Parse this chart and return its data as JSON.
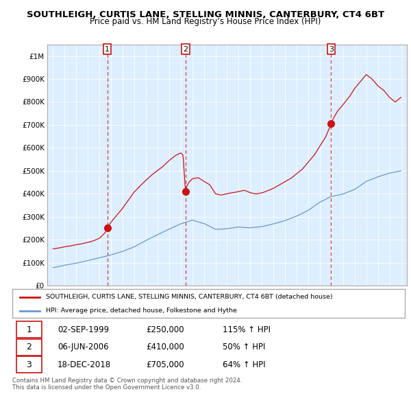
{
  "title": "SOUTHLEIGH, CURTIS LANE, STELLING MINNIS, CANTERBURY, CT4 6BT",
  "subtitle": "Price paid vs. HM Land Registry’s House Price Index (HPI)",
  "sale_year_floats": [
    1999.67,
    2006.42,
    2018.96
  ],
  "sale_prices": [
    250000,
    410000,
    705000
  ],
  "sale_labels": [
    "1",
    "2",
    "3"
  ],
  "legend_house": "SOUTHLEIGH, CURTIS LANE, STELLING MINNIS, CANTERBURY, CT4 6BT (detached house)",
  "legend_hpi": "HPI: Average price, detached house, Folkestone and Hythe",
  "table_rows": [
    [
      "1",
      "02-SEP-1999",
      "£250,000",
      "115% ↑ HPI"
    ],
    [
      "2",
      "06-JUN-2006",
      "£410,000",
      "50% ↑ HPI"
    ],
    [
      "3",
      "18-DEC-2018",
      "£705,000",
      "64% ↑ HPI"
    ]
  ],
  "footer": "Contains HM Land Registry data © Crown copyright and database right 2024.\nThis data is licensed under the Open Government Licence v3.0.",
  "house_color": "#cc1111",
  "hpi_color": "#6699cc",
  "dashed_color": "#cc1111",
  "shade_color": "#ddeeff",
  "ylim": [
    0,
    1050000
  ],
  "yticks": [
    0,
    100000,
    200000,
    300000,
    400000,
    500000,
    600000,
    700000,
    800000,
    900000,
    1000000
  ],
  "ytick_labels": [
    "£0",
    "£100K",
    "£200K",
    "£300K",
    "£400K",
    "£500K",
    "£600K",
    "£700K",
    "£800K",
    "£900K",
    "£1M"
  ],
  "xlim": [
    1994.5,
    2025.5
  ],
  "hpi_kx": [
    1995,
    1996,
    1997,
    1998,
    1999,
    2000,
    2001,
    2002,
    2003,
    2004,
    2005,
    2006,
    2007,
    2008,
    2009,
    2010,
    2011,
    2012,
    2013,
    2014,
    2015,
    2016,
    2017,
    2018,
    2019,
    2020,
    2021,
    2022,
    2023,
    2024,
    2025
  ],
  "hpi_ky": [
    78000,
    88000,
    98000,
    108000,
    120000,
    133000,
    148000,
    168000,
    195000,
    220000,
    245000,
    268000,
    285000,
    270000,
    245000,
    248000,
    255000,
    252000,
    258000,
    270000,
    285000,
    305000,
    330000,
    365000,
    390000,
    400000,
    420000,
    455000,
    475000,
    490000,
    500000
  ],
  "house_kx": [
    1995,
    1995.5,
    1996,
    1996.5,
    1997,
    1997.5,
    1998,
    1998.5,
    1999,
    1999.5,
    1999.67,
    2000,
    2000.5,
    2001,
    2001.5,
    2002,
    2002.5,
    2003,
    2003.5,
    2004,
    2004.5,
    2005,
    2005.5,
    2006,
    2006.2,
    2006.42,
    2006.5,
    2006.7,
    2007,
    2007.5,
    2008,
    2008.5,
    2009,
    2009.5,
    2010,
    2010.5,
    2011,
    2011.5,
    2012,
    2012.5,
    2013,
    2013.5,
    2014,
    2014.5,
    2015,
    2015.5,
    2016,
    2016.5,
    2017,
    2017.5,
    2018,
    2018.5,
    2018.96,
    2019,
    2019.5,
    2020,
    2020.5,
    2021,
    2021.5,
    2022,
    2022.5,
    2023,
    2023.5,
    2024,
    2024.5,
    2025
  ],
  "house_ky": [
    160000,
    163000,
    168000,
    172000,
    178000,
    182000,
    188000,
    195000,
    205000,
    230000,
    250000,
    275000,
    305000,
    335000,
    370000,
    405000,
    430000,
    455000,
    480000,
    500000,
    520000,
    545000,
    565000,
    578000,
    570000,
    410000,
    430000,
    450000,
    465000,
    470000,
    455000,
    440000,
    400000,
    395000,
    400000,
    405000,
    410000,
    415000,
    405000,
    400000,
    405000,
    415000,
    425000,
    440000,
    455000,
    470000,
    490000,
    510000,
    540000,
    570000,
    610000,
    650000,
    705000,
    715000,
    760000,
    790000,
    820000,
    860000,
    890000,
    920000,
    900000,
    870000,
    850000,
    820000,
    800000,
    820000
  ]
}
